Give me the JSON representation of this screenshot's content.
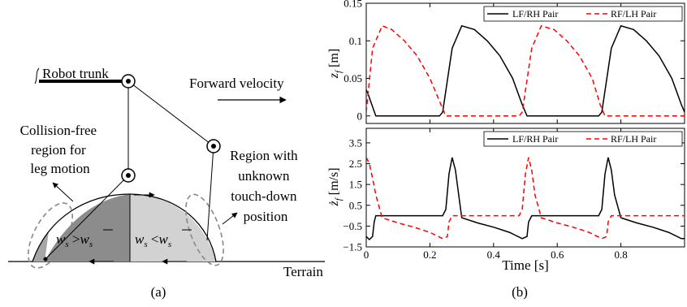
{
  "panel_a": {
    "caption": "(a)",
    "robot_trunk": "Robot trunk",
    "forward_velocity": "Forward velocity",
    "collision_free": [
      "Collision-free",
      "region for",
      "leg motion"
    ],
    "unknown_region": [
      "Region with",
      "unknown",
      "touch-down",
      "position"
    ],
    "ws_greater": "w",
    "ws_less": "w",
    "terrain": "Terrain",
    "colors": {
      "dark_region": "#8c8c8c",
      "light_region": "#d2d2d2",
      "mid_region": "#a6a6a6",
      "dashed_ellipse": "#888888"
    }
  },
  "panel_b": {
    "caption": "(b)",
    "x_label": "Time [s]",
    "colors": {
      "lf_rh": "#000000",
      "rf_lh": "#ff0000"
    }
  },
  "chart_data": [
    {
      "type": "line",
      "ylabel": "z_f [m]",
      "xlim": [
        0,
        1
      ],
      "ylim": [
        -0.01,
        0.15
      ],
      "x_ticks": [
        0,
        0.2,
        0.4,
        0.6,
        0.8
      ],
      "x_tick_labels": [
        "",
        "",
        "",
        "",
        ""
      ],
      "y_ticks": [
        0,
        0.05,
        0.1,
        0.15
      ],
      "y_tick_labels": [
        "0",
        "0.05",
        "0.1",
        "0.15"
      ],
      "legend_position": "top-right",
      "series": [
        {
          "name": "LF/RH Pair",
          "color": "#000000",
          "dash": "solid",
          "x": [
            0,
            0.005,
            0.03,
            0.23,
            0.24,
            0.27,
            0.3,
            0.34,
            0.38,
            0.42,
            0.46,
            0.49,
            0.505,
            0.53,
            0.73,
            0.74,
            0.77,
            0.8,
            0.84,
            0.88,
            0.92,
            0.96,
            0.99,
            1.0
          ],
          "y": [
            0.035,
            0.03,
            0,
            0,
            0.005,
            0.09,
            0.12,
            0.115,
            0.1,
            0.08,
            0.05,
            0.015,
            0,
            0,
            0,
            0.005,
            0.09,
            0.12,
            0.115,
            0.1,
            0.08,
            0.05,
            0.015,
            0.005
          ]
        },
        {
          "name": "RF/LH Pair",
          "color": "#ff0000",
          "dash": "dashed",
          "x": [
            0,
            0.02,
            0.05,
            0.08,
            0.12,
            0.16,
            0.2,
            0.235,
            0.25,
            0.28,
            0.48,
            0.49,
            0.52,
            0.55,
            0.59,
            0.63,
            0.67,
            0.71,
            0.735,
            0.75,
            0.78,
            1.0
          ],
          "y": [
            0.005,
            0.09,
            0.12,
            0.115,
            0.1,
            0.08,
            0.05,
            0.015,
            0,
            0,
            0,
            0.005,
            0.09,
            0.12,
            0.115,
            0.1,
            0.08,
            0.05,
            0.015,
            0,
            0,
            0
          ]
        }
      ]
    },
    {
      "type": "line",
      "ylabel": "ż_f [m/s]",
      "xlim": [
        0,
        1
      ],
      "ylim": [
        -1.5,
        4.2
      ],
      "x_ticks": [
        0,
        0.2,
        0.4,
        0.6,
        0.8
      ],
      "x_tick_labels": [
        "0",
        "0.2",
        "0.4",
        "0.6",
        "0.8"
      ],
      "y_ticks": [
        -1.5,
        -0.5,
        0.5,
        1.5,
        2.5,
        3.5
      ],
      "y_tick_labels": [
        "−1.5",
        "−0.5",
        "0.5",
        "1.5",
        "2.5",
        "3.5"
      ],
      "legend_position": "top-right",
      "series": [
        {
          "name": "LF/RH Pair",
          "color": "#000000",
          "dash": "solid",
          "x": [
            0,
            0.01,
            0.02,
            0.025,
            0.03,
            0.24,
            0.25,
            0.26,
            0.27,
            0.28,
            0.3,
            0.35,
            0.4,
            0.45,
            0.49,
            0.505,
            0.51,
            0.52,
            0.73,
            0.74,
            0.75,
            0.76,
            0.77,
            0.78,
            0.8,
            0.85,
            0.9,
            0.95,
            0.99,
            1.0
          ],
          "y": [
            -1.0,
            -1.15,
            -1.0,
            -0.3,
            0,
            0,
            0.3,
            2.0,
            2.8,
            2.2,
            -0.1,
            -0.35,
            -0.55,
            -0.8,
            -1.1,
            -1.0,
            -0.3,
            0,
            0,
            0.3,
            2.0,
            2.8,
            2.2,
            1.0,
            -0.1,
            -0.35,
            -0.55,
            -0.8,
            -1.1,
            -1.1
          ]
        },
        {
          "name": "RF/LH Pair",
          "color": "#ff0000",
          "dash": "dashed",
          "x": [
            0,
            0.01,
            0.02,
            0.03,
            0.05,
            0.1,
            0.15,
            0.2,
            0.24,
            0.255,
            0.26,
            0.27,
            0.48,
            0.49,
            0.5,
            0.51,
            0.52,
            0.53,
            0.55,
            0.6,
            0.65,
            0.7,
            0.74,
            0.755,
            0.76,
            0.77,
            1.0
          ],
          "y": [
            2.8,
            2.5,
            1.8,
            1.0,
            -0.1,
            -0.35,
            -0.55,
            -0.8,
            -1.1,
            -1.0,
            -0.3,
            0,
            0,
            0.3,
            2.0,
            2.8,
            2.2,
            1.0,
            -0.1,
            -0.35,
            -0.55,
            -0.8,
            -1.1,
            -1.0,
            -0.3,
            0,
            0
          ]
        }
      ]
    }
  ]
}
